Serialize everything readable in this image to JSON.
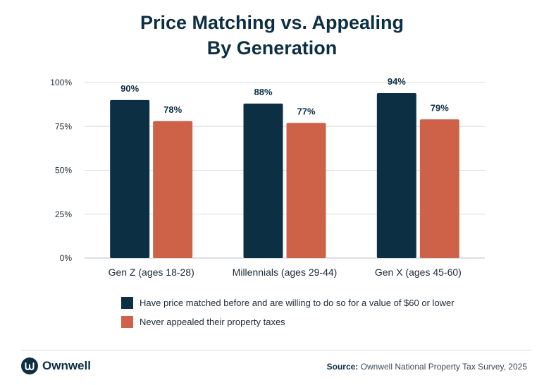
{
  "title_line1": "Price Matching vs. Appealing",
  "title_line2": "By Generation",
  "chart_data": {
    "type": "bar",
    "title": "Price Matching vs. Appealing By Generation",
    "categories": [
      "Gen Z (ages 18-28)",
      "Millennials (ages 29-44)",
      "Gen X (ages 45-60)"
    ],
    "series": [
      {
        "name": "Have price matched before and are willing to do so for a value of $60 or lower",
        "values": [
          90,
          88,
          94
        ],
        "labels": [
          "90%",
          "88%",
          "94%"
        ],
        "color": "#0d2f44"
      },
      {
        "name": "Never appealed their property taxes",
        "values": [
          78,
          77,
          79
        ],
        "labels": [
          "78%",
          "77%",
          "79%"
        ],
        "color": "#cd6249"
      }
    ],
    "yticks": [
      "0%",
      "25%",
      "50%",
      "75%",
      "100%"
    ],
    "ylim": [
      0,
      100
    ],
    "grid": true,
    "legend_position": "bottom"
  },
  "colors": {
    "navy": "#0d2f44",
    "orange": "#cd6249",
    "grid": "#d9dde0"
  },
  "brand": {
    "name": "Ownwell",
    "icon": "ownwell-logo-icon"
  },
  "source": {
    "label": "Source:",
    "text": "Ownwell National Property Tax Survey, 2025"
  }
}
